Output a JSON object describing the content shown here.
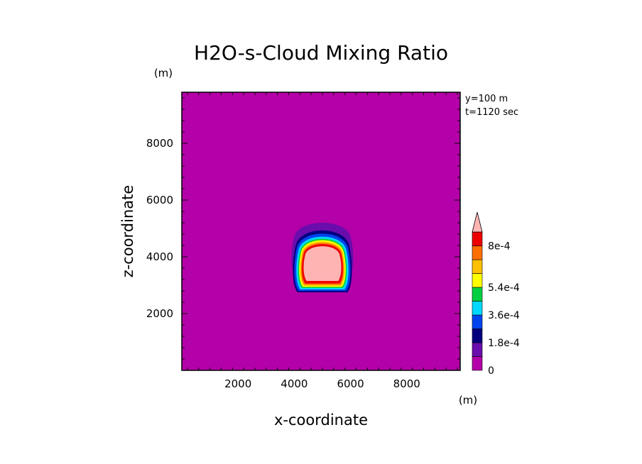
{
  "chart_data": {
    "type": "heatmap",
    "title": "H2O-s-Cloud Mixing Ratio",
    "xlabel": "x-coordinate",
    "ylabel": "z-coordinate",
    "x_unit": "(m)",
    "y_unit": "(m)",
    "xlim": [
      0,
      9900
    ],
    "ylim": [
      0,
      9800
    ],
    "x_ticks": [
      2000,
      4000,
      6000,
      8000
    ],
    "y_ticks": [
      2000,
      4000,
      6000,
      8000
    ],
    "annotations": [
      "y=100 m",
      "t=1120 sec"
    ],
    "colorbar": {
      "levels": [
        0,
        9e-05,
        0.00018,
        0.00027,
        0.00036,
        0.00045,
        0.00054,
        0.00063,
        0.00072,
        0.0008
      ],
      "colors": [
        "#b400a8",
        "#6a0dad",
        "#00007f",
        "#0044ee",
        "#00d8ff",
        "#00d040",
        "#ffff00",
        "#ffc000",
        "#ff7000",
        "#ee0000",
        "#ffb4b4"
      ],
      "labels": [
        {
          "value": 0,
          "text": "0"
        },
        {
          "value": 0.00018,
          "text": "1.8e-4"
        },
        {
          "value": 0.00036,
          "text": "3.6e-4"
        },
        {
          "value": 0.00054,
          "text": "5.4e-4"
        },
        {
          "value": 0.0008,
          "text": "8e-4"
        }
      ],
      "extend": "max"
    },
    "cloud": {
      "center_x": 5000,
      "x_min": 3950,
      "x_max": 6050,
      "z_min": 2750,
      "z_max": 5300,
      "core_value_min": 0.0008
    },
    "background_value": 0
  }
}
